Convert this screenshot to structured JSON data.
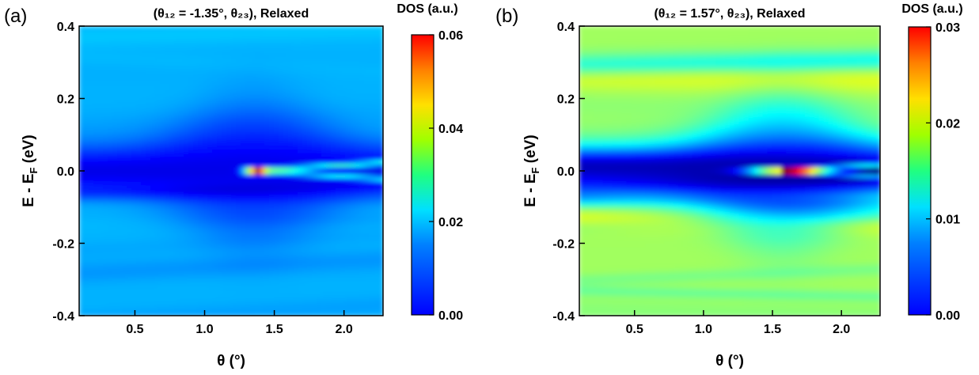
{
  "chart_data": [
    {
      "type": "heatmap",
      "panel_label": "(a)",
      "title": "(θ₁₂ = -1.35°, θ₂₃), Relaxed",
      "xlabel": "θ (°)",
      "ylabel": "E - E_F (eV)",
      "xlim": [
        0.1,
        2.28
      ],
      "ylim": [
        -0.4,
        0.4
      ],
      "x_ticks": [
        "0.5",
        "1.0",
        "1.5",
        "2.0"
      ],
      "y_ticks": [
        "-0.4",
        "-0.2",
        "0.0",
        "0.2",
        "0.4"
      ],
      "colorbar": {
        "title": "DOS (a.u.)",
        "range": [
          0.0,
          0.06
        ],
        "ticks": [
          "0.00",
          "0.02",
          "0.04",
          "0.06"
        ],
        "colormap": "jet"
      },
      "features": {
        "background_level": 0.018,
        "gap_level": 0.006,
        "peak": {
          "x": 1.35,
          "y": 0.0,
          "value": 0.055
        }
      }
    },
    {
      "type": "heatmap",
      "panel_label": "(b)",
      "title": "(θ₁₂ = 1.57°, θ₂₃), Relaxed",
      "xlabel": "θ (°)",
      "ylabel": "E - E_F (eV)",
      "xlim": [
        0.1,
        2.28
      ],
      "ylim": [
        -0.4,
        0.4
      ],
      "x_ticks": [
        "0.5",
        "1.0",
        "1.5",
        "2.0"
      ],
      "y_ticks": [
        "-0.4",
        "-0.2",
        "0.0",
        "0.2",
        "0.4"
      ],
      "colorbar": {
        "title": "DOS (a.u.)",
        "range": [
          0.0,
          0.03
        ],
        "ticks": [
          "0.00",
          "0.01",
          "0.02",
          "0.03"
        ],
        "colormap": "jet"
      },
      "features": {
        "background_level": 0.016,
        "gap_level": 0.004,
        "peak": {
          "x": 1.57,
          "y": 0.0,
          "value": 0.029
        }
      }
    }
  ]
}
